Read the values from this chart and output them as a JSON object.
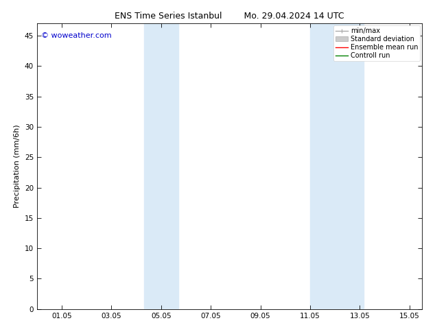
{
  "title_left": "ENS Time Series Istanbul",
  "title_right": "Mo. 29.04.2024 14 UTC",
  "ylabel": "Precipitation (mm/6h)",
  "watermark": "© woweather.com",
  "watermark_color": "#0000cc",
  "background_color": "#ffffff",
  "plot_bg_color": "#ffffff",
  "shaded_bands": [
    {
      "x_start": 4.3,
      "x_end": 5.7,
      "color": "#daeaf7"
    },
    {
      "x_start": 11.0,
      "x_end": 13.15,
      "color": "#daeaf7"
    }
  ],
  "x_ticks": [
    1,
    3,
    5,
    7,
    9,
    11,
    13,
    15
  ],
  "x_tick_labels": [
    "01.05",
    "03.05",
    "05.05",
    "07.05",
    "09.05",
    "11.05",
    "13.05",
    "15.05"
  ],
  "x_min": 0.0,
  "x_max": 15.5,
  "y_min": 0,
  "y_max": 47,
  "y_ticks": [
    0,
    5,
    10,
    15,
    20,
    25,
    30,
    35,
    40,
    45
  ],
  "legend_entries": [
    {
      "label": "min/max",
      "color": "#aaaaaa",
      "lw": 1.0,
      "style": "minmax"
    },
    {
      "label": "Standard deviation",
      "color": "#cccccc",
      "lw": 5,
      "style": "band"
    },
    {
      "label": "Ensemble mean run",
      "color": "#ff0000",
      "lw": 1.0,
      "style": "line"
    },
    {
      "label": "Controll run",
      "color": "#008000",
      "lw": 1.0,
      "style": "line"
    }
  ],
  "title_fontsize": 9,
  "tick_fontsize": 7.5,
  "label_fontsize": 8,
  "watermark_fontsize": 8,
  "legend_fontsize": 7
}
